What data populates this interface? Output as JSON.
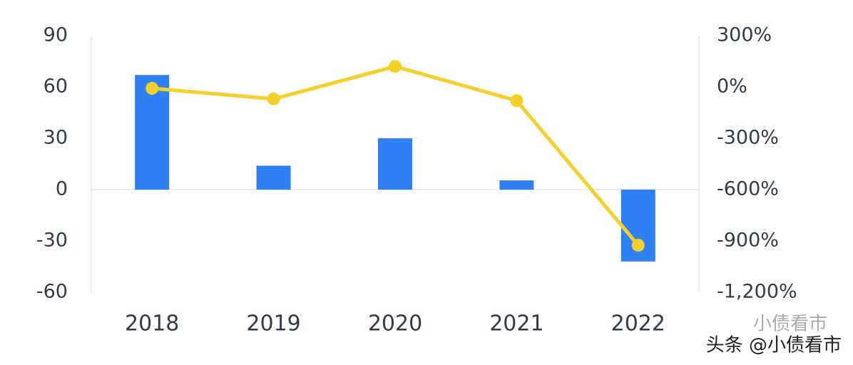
{
  "chart_data": {
    "type": "combo",
    "categories": [
      "2018",
      "2019",
      "2020",
      "2021",
      "2022"
    ],
    "series": [
      {
        "type": "bar",
        "color": "#2f80f5",
        "values": [
          67,
          14,
          30,
          5.4,
          -42
        ]
      },
      {
        "type": "line",
        "axis": "y2",
        "color": "#f5cf2a",
        "values": [
          -8,
          -70,
          120,
          -80,
          -925
        ]
      }
    ],
    "ylim": [
      -60,
      90
    ],
    "yticks": [
      -60,
      -30,
      0,
      30,
      60,
      90
    ],
    "y2lim": [
      -1200,
      300
    ],
    "y2ticks": [
      {
        "value": -1200,
        "label": "-1,200%"
      },
      {
        "value": -900,
        "label": "-900%"
      },
      {
        "value": -600,
        "label": "-600%"
      },
      {
        "value": -300,
        "label": "-300%"
      },
      {
        "value": 0,
        "label": "0%"
      },
      {
        "value": 300,
        "label": "300%"
      }
    ],
    "watermark_logo": "小债看市",
    "watermark": "头条 @小债看市"
  }
}
